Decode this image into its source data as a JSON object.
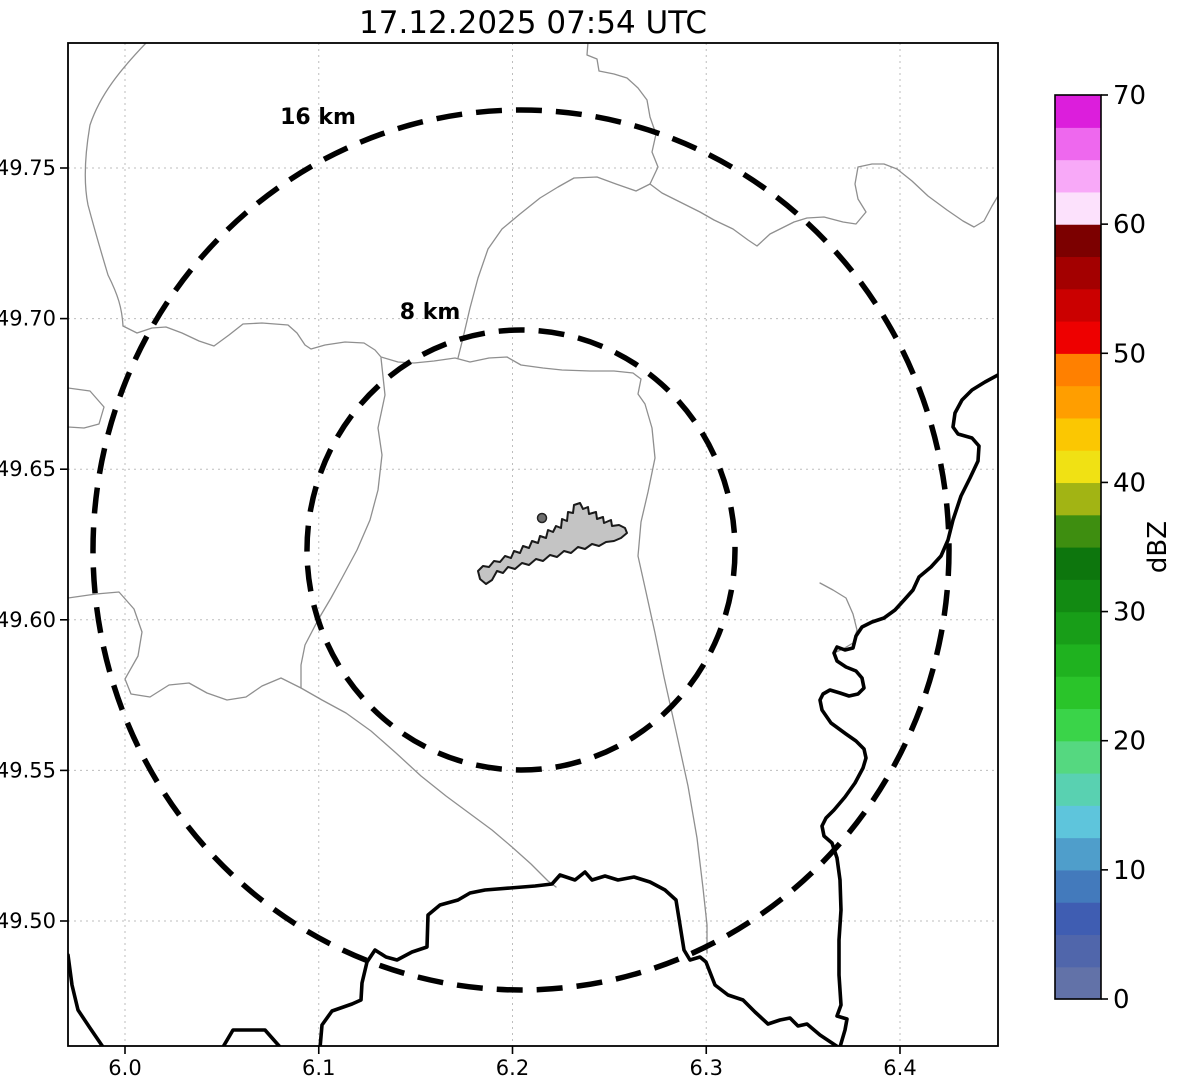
{
  "title": "17.12.2025 07:54 UTC",
  "map": {
    "x_axis": {
      "ticks": [
        "6.0",
        "6.1",
        "6.2",
        "6.3",
        "6.4"
      ]
    },
    "y_axis": {
      "ticks": [
        "49.75",
        "49.70",
        "49.65",
        "49.60",
        "49.55",
        "49.50"
      ]
    },
    "range_rings": [
      {
        "label": "16 km"
      },
      {
        "label": "8 km"
      }
    ],
    "feature_colors": {
      "airport_fill": "#c4c4c4",
      "admin_boundary": "#8f8f8f",
      "country_border": "#000000"
    }
  },
  "colorbar": {
    "label": "dBZ",
    "min": 0,
    "max": 70,
    "tick_values": [
      0,
      10,
      20,
      30,
      40,
      50,
      60,
      70
    ],
    "segment_colors_bottom_to_top": [
      "#6272a8",
      "#5066ab",
      "#3f5db2",
      "#437abc",
      "#4f9ecb",
      "#5ec5dc",
      "#59d1b1",
      "#55d880",
      "#3ad449",
      "#2ac42a",
      "#1fb21f",
      "#189e18",
      "#128a12",
      "#0d760d",
      "#3e8e10",
      "#a2b414",
      "#f0e114",
      "#fbc702",
      "#ff9e00",
      "#ff8000",
      "#ee0000",
      "#cb0000",
      "#a30000",
      "#7c0000",
      "#fce1fc",
      "#f8a9f8",
      "#ee68ee",
      "#dc1edc"
    ]
  }
}
